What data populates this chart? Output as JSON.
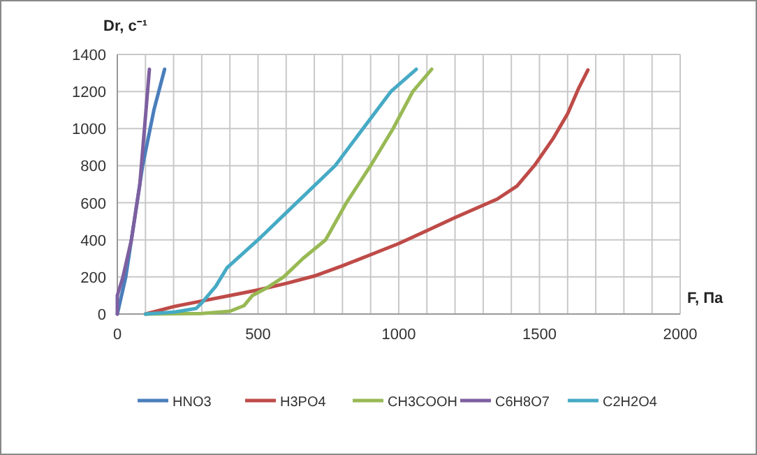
{
  "chart_data": {
    "type": "line",
    "xlabel": "F, Па",
    "ylabel": "Dr, с⁻¹",
    "xlim": [
      0,
      2000
    ],
    "ylim": [
      0,
      1400
    ],
    "xticks": [
      0,
      {
        "value": 100,
        "label": null
      },
      {
        "value": 200,
        "label": null
      },
      {
        "value": 300,
        "label": null
      },
      {
        "value": 400,
        "label": null
      },
      500,
      {
        "value": 600,
        "label": null
      },
      {
        "value": 700,
        "label": null
      },
      {
        "value": 800,
        "label": null
      },
      {
        "value": 900,
        "label": null
      },
      1000,
      {
        "value": 1100,
        "label": null
      },
      {
        "value": 1200,
        "label": null
      },
      {
        "value": 1300,
        "label": null
      },
      {
        "value": 1400,
        "label": null
      },
      1500,
      {
        "value": 1600,
        "label": null
      },
      {
        "value": 1700,
        "label": null
      },
      {
        "value": 1800,
        "label": null
      },
      {
        "value": 1900,
        "label": null
      },
      2000
    ],
    "yticks": [
      0,
      200,
      400,
      600,
      800,
      1000,
      1200,
      1400
    ],
    "grid": true,
    "legend": "bottom",
    "marker": "none",
    "line_style": "solid",
    "series": [
      {
        "name": "HNO3",
        "color": "#4a7ebb",
        "x": [
          0,
          30,
          50,
          90,
          130,
          168
        ],
        "values": [
          0,
          200,
          400,
          800,
          1100,
          1320
        ]
      },
      {
        "name": "H3PO4",
        "color": "#be4b48",
        "x": [
          100,
          200,
          300,
          400,
          500,
          600,
          700,
          800,
          900,
          1000,
          1100,
          1200,
          1350,
          1420,
          1484,
          1550,
          1600,
          1640,
          1672
        ],
        "values": [
          0,
          40,
          70,
          100,
          130,
          165,
          205,
          260,
          320,
          380,
          450,
          520,
          620,
          690,
          805,
          950,
          1080,
          1220,
          1316
        ]
      },
      {
        "name": "CH3COOH",
        "color": "#98b954",
        "x": [
          100,
          300,
          400,
          450,
          480,
          530,
          591,
          660,
          740,
          814,
          900,
          980,
          1050,
          1117
        ],
        "values": [
          0,
          3,
          15,
          45,
          100,
          140,
          200,
          300,
          400,
          600,
          800,
          1000,
          1200,
          1320
        ]
      },
      {
        "name": "C6H8O7",
        "color": "#7d60a0",
        "x": [
          0,
          0,
          20,
          50,
          80,
          114
        ],
        "values": [
          0,
          100,
          200,
          400,
          700,
          1320
        ]
      },
      {
        "name": "C2H2O4",
        "color": "#46aac5",
        "x": [
          100,
          200,
          280,
          300,
          350,
          390,
          500,
          600,
          774,
          972,
          1062
        ],
        "values": [
          0,
          10,
          30,
          60,
          150,
          250,
          400,
          546,
          800,
          1200,
          1320
        ]
      }
    ]
  }
}
